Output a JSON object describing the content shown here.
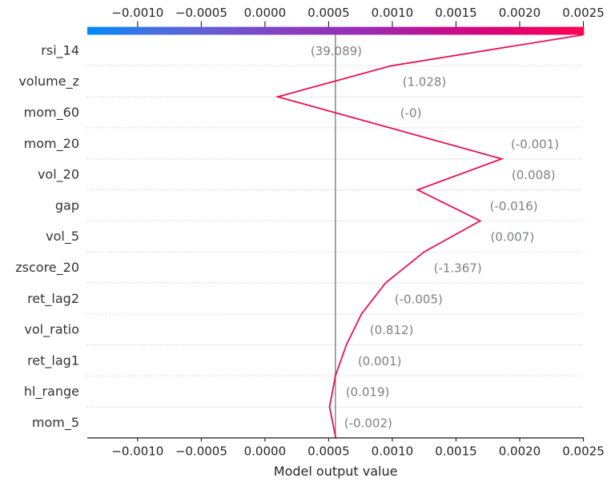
{
  "chart_data": {
    "type": "line",
    "subtype": "shap-decision-plot",
    "title": "",
    "xlabel": "Model output value",
    "x_ticks": [
      -0.001,
      -0.0005,
      0.0,
      0.0005,
      0.001,
      0.0015,
      0.002,
      0.0025
    ],
    "x_tick_labels": [
      "−0.0010",
      "−0.0005",
      "0.0000",
      "0.0005",
      "0.0010",
      "0.0015",
      "0.0020",
      "0.0025"
    ],
    "top_tick_labels": [
      "−0.0010",
      "−0.0005",
      "0.0000",
      "0.0005",
      "0.0010",
      "0.0015",
      "0.0020",
      "0.0025"
    ],
    "xlim": [
      -0.001395,
      0.002505
    ],
    "grid": "dotted-horizontal",
    "base_value": 0.000553,
    "final_output": 0.0025,
    "features": [
      {
        "name": "rsi_14",
        "value_label": "(39.089)",
        "annotation_x": 0.000358
      },
      {
        "name": "volume_z",
        "value_label": "(1.028)",
        "annotation_x": 0.00108
      },
      {
        "name": "mom_60",
        "value_label": "(-0)",
        "annotation_x": 0.001062
      },
      {
        "name": "mom_20",
        "value_label": "(-0.001)",
        "annotation_x": 0.001931
      },
      {
        "name": "vol_20",
        "value_label": "(0.008)",
        "annotation_x": 0.001937
      },
      {
        "name": "gap",
        "value_label": "(-0.016)",
        "annotation_x": 0.001765
      },
      {
        "name": "vol_5",
        "value_label": "(0.007)",
        "annotation_x": 0.001771
      },
      {
        "name": "zscore_20",
        "value_label": "(-1.367)",
        "annotation_x": 0.001325
      },
      {
        "name": "ret_lag2",
        "value_label": "(-0.005)",
        "annotation_x": 0.001018
      },
      {
        "name": "vol_ratio",
        "value_label": "(0.812)",
        "annotation_x": 0.000823
      },
      {
        "name": "ret_lag1",
        "value_label": "(0.001)",
        "annotation_x": 0.000729
      },
      {
        "name": "hl_range",
        "value_label": "(0.019)",
        "annotation_x": 0.000634
      },
      {
        "name": "mom_5",
        "value_label": "(-0.002)",
        "annotation_x": 0.000622
      }
    ],
    "cumulative_values_top_to_bottom": [
      0.0025,
      0.000992,
      0.0001,
      0.00098,
      0.001859,
      0.001198,
      0.00169,
      0.00125,
      0.000947,
      0.000758,
      0.000639,
      0.000553,
      0.000507,
      0.000556
    ],
    "colors": {
      "line": "#e7105c",
      "base_line": "#808080",
      "grid": "#b3b3b3",
      "axis": "#1a1a1a",
      "tick_label": "#262626",
      "feature_label": "#333333",
      "annotation": "#7f8084",
      "colorbar_stops": [
        "#008bfb",
        "#4a6ee0",
        "#6f55cf",
        "#8a3bbb",
        "#9a2bb3",
        "#c30f8d",
        "#e2026e",
        "#ff0051"
      ]
    }
  }
}
